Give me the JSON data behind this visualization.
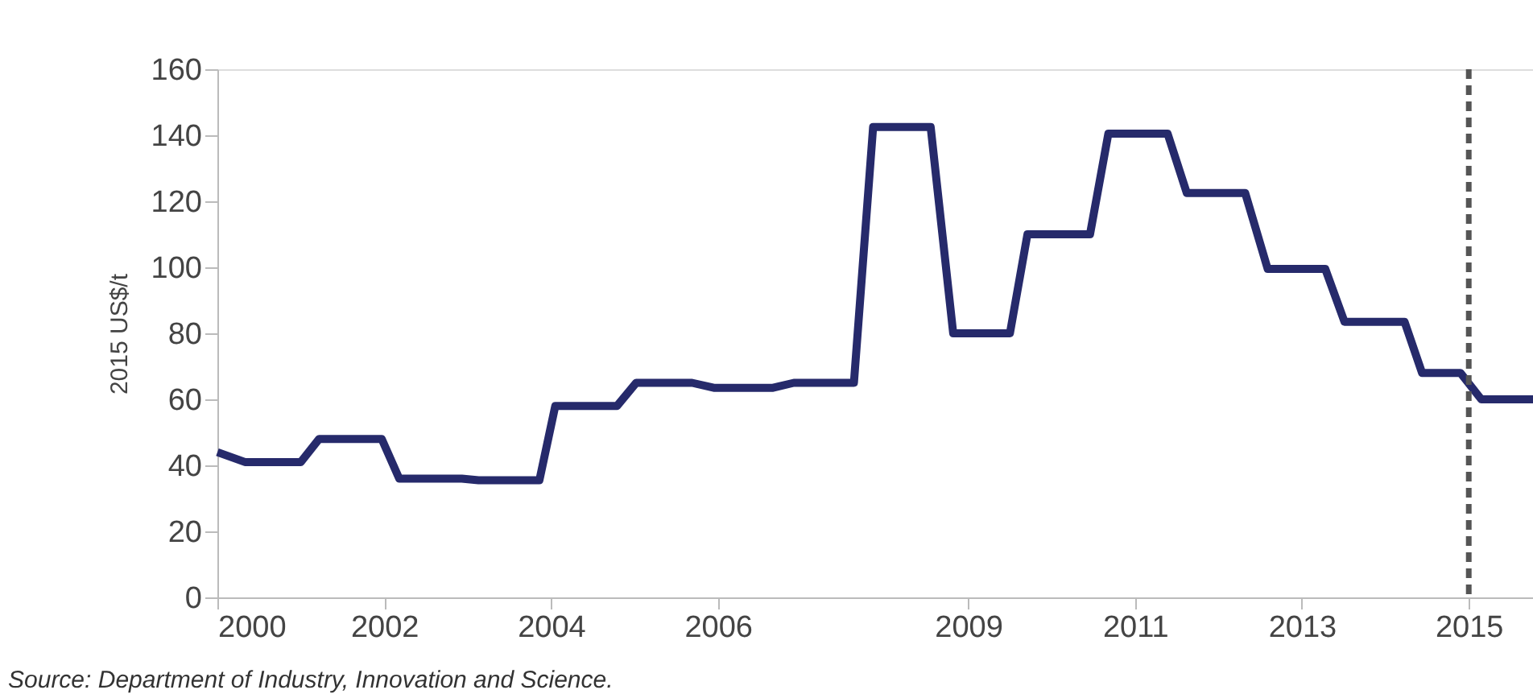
{
  "chart_data": {
    "type": "line",
    "x": [
      2000.0,
      2000.33,
      2001.0,
      2001.22,
      2001.97,
      2002.18,
      2002.93,
      2003.13,
      2003.86,
      2004.05,
      2004.79,
      2005.02,
      2005.69,
      2005.95,
      2006.66,
      2006.91,
      2007.63,
      2007.86,
      2008.55,
      2008.82,
      2009.5,
      2009.71,
      2010.46,
      2010.68,
      2011.39,
      2011.62,
      2012.32,
      2012.59,
      2013.28,
      2013.51,
      2014.23,
      2014.44,
      2014.9,
      2015.15,
      2015.77
    ],
    "series": [
      {
        "color": "#262a6b",
        "values": [
          44,
          41,
          41,
          48,
          48,
          36,
          36,
          35.5,
          35.5,
          58,
          58,
          65,
          65,
          63.5,
          63.5,
          65,
          65,
          142.5,
          142.5,
          80,
          80,
          110,
          110,
          140.5,
          140.5,
          122.5,
          122.5,
          99.5,
          99.5,
          83.5,
          83.5,
          68,
          68,
          60,
          60
        ]
      }
    ],
    "xlim": [
      2000,
      2015.77
    ],
    "xticks": [
      2000,
      2002,
      2004,
      2006,
      2009,
      2011,
      2013,
      2015
    ],
    "ylim": [
      0,
      160
    ],
    "yticks": [
      0,
      20,
      40,
      60,
      80,
      100,
      120,
      140,
      160
    ],
    "ylabel": "2015 US$/t",
    "ref_lines": [
      {
        "axis": "x",
        "value": 2015,
        "color": "#555555",
        "line_style": "dashed"
      }
    ],
    "annotations": [
      "Source: Department of Industry, Innovation and Science."
    ],
    "grid": false,
    "marker": "none",
    "line_style": "solid"
  }
}
